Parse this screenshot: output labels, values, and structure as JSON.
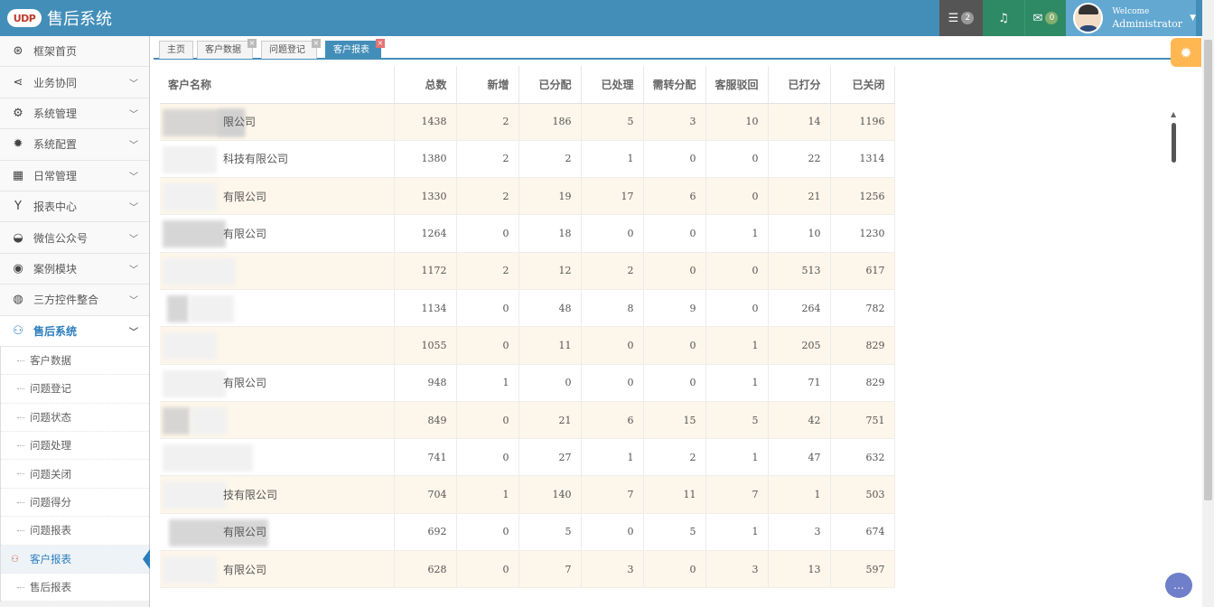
{
  "header": {
    "logo": "UDP",
    "title": "售后系统",
    "tasks_count": "2",
    "messages_count": "0",
    "welcome": "Welcome",
    "username": "Administrator"
  },
  "sidebar": {
    "items": [
      {
        "label": "框架首页",
        "icon": "dashboard-icon",
        "glyph": "⊛"
      },
      {
        "label": "业务协同",
        "icon": "share-icon",
        "glyph": "⋖"
      },
      {
        "label": "系统管理",
        "icon": "cogs-icon",
        "glyph": "⚙"
      },
      {
        "label": "系统配置",
        "icon": "gear-icon",
        "glyph": "✹"
      },
      {
        "label": "日常管理",
        "icon": "calendar-icon",
        "glyph": "▦"
      },
      {
        "label": "报表中心",
        "icon": "filter-icon",
        "glyph": "Y"
      },
      {
        "label": "微信公众号",
        "icon": "wechat-icon",
        "glyph": "◒"
      },
      {
        "label": "案例模块",
        "icon": "eye-icon",
        "glyph": "◉"
      },
      {
        "label": "三方控件整合",
        "icon": "globe-icon",
        "glyph": "◍"
      }
    ],
    "open_group": {
      "label": "售后系统",
      "icon": "users-icon",
      "glyph": "⚇",
      "children": [
        {
          "label": "客户数据"
        },
        {
          "label": "问题登记"
        },
        {
          "label": "问题状态"
        },
        {
          "label": "问题处理"
        },
        {
          "label": "问题关闭"
        },
        {
          "label": "问题得分"
        },
        {
          "label": "问题报表"
        },
        {
          "label": "客户报表"
        },
        {
          "label": "售后报表"
        }
      ]
    }
  },
  "tabs": [
    {
      "label": "主页"
    },
    {
      "label": "客户数据"
    },
    {
      "label": "问题登记"
    },
    {
      "label": "客户报表"
    }
  ],
  "table": {
    "columns": [
      "客户名称",
      "总数",
      "新增",
      "已分配",
      "已处理",
      "需转分配",
      "客服驳回",
      "已打分",
      "已关闭"
    ],
    "rows": [
      [
        "限公司",
        "1438",
        "2",
        "186",
        "5",
        "3",
        "10",
        "14",
        "1196"
      ],
      [
        "科技有限公司",
        "1380",
        "2",
        "2",
        "1",
        "0",
        "0",
        "22",
        "1314"
      ],
      [
        "有限公司",
        "1330",
        "2",
        "19",
        "17",
        "6",
        "0",
        "21",
        "1256"
      ],
      [
        "有限公司",
        "1264",
        "0",
        "18",
        "0",
        "0",
        "1",
        "10",
        "1230"
      ],
      [
        "",
        "1172",
        "2",
        "12",
        "2",
        "0",
        "0",
        "513",
        "617"
      ],
      [
        "",
        "1134",
        "0",
        "48",
        "8",
        "9",
        "0",
        "264",
        "782"
      ],
      [
        "",
        "1055",
        "0",
        "11",
        "0",
        "0",
        "1",
        "205",
        "829"
      ],
      [
        "有限公司",
        "948",
        "1",
        "0",
        "0",
        "0",
        "1",
        "71",
        "829"
      ],
      [
        "",
        "849",
        "0",
        "21",
        "6",
        "15",
        "5",
        "42",
        "751"
      ],
      [
        "",
        "741",
        "0",
        "27",
        "1",
        "2",
        "1",
        "47",
        "632"
      ],
      [
        "技有限公司",
        "704",
        "1",
        "140",
        "7",
        "11",
        "7",
        "1",
        "503"
      ],
      [
        "有限公司",
        "692",
        "0",
        "5",
        "0",
        "5",
        "1",
        "3",
        "674"
      ],
      [
        "有限公司",
        "628",
        "0",
        "7",
        "3",
        "0",
        "3",
        "13",
        "597"
      ]
    ]
  }
}
